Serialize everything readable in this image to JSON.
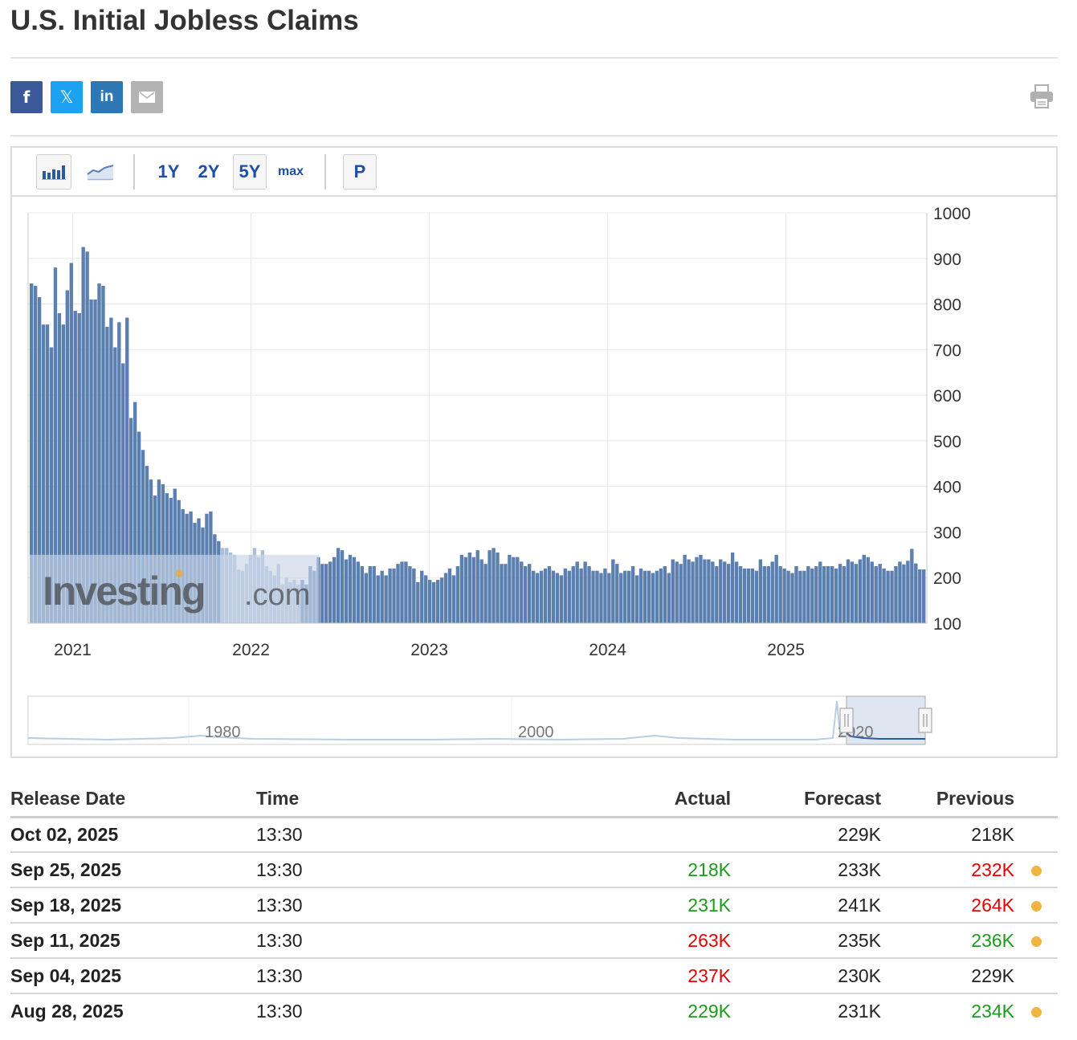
{
  "page": {
    "title": "U.S. Initial Jobless Claims"
  },
  "share": {
    "facebook": "f",
    "twitter": "𝕏",
    "linkedin": "in",
    "icons": [
      "facebook-icon",
      "twitter-icon",
      "linkedin-icon",
      "email-icon",
      "print-icon"
    ],
    "colors": {
      "facebook": "#3b5998",
      "twitter": "#1da1f2",
      "linkedin": "#2d77b5",
      "email": "#b3b3b3"
    }
  },
  "toolbar": {
    "chart_type_icons": [
      "bar-chart-icon",
      "area-chart-icon"
    ],
    "ranges": [
      "1Y",
      "2Y",
      "5Y",
      "max"
    ],
    "selected_range": "5Y",
    "p_label": "P"
  },
  "colors": {
    "bar": "#5b7fae",
    "bar_light": "#a9bdd6",
    "grid": "#e8e8e8",
    "positive": "#1a9c1a",
    "negative": "#e80000",
    "dot": "#f0b541"
  },
  "chart_data": {
    "type": "bar",
    "title": "U.S. Initial Jobless Claims",
    "x_range": [
      2020.75,
      2025.79
    ],
    "ylim": [
      100,
      1000
    ],
    "yticks": [
      100,
      200,
      300,
      400,
      500,
      600,
      700,
      800,
      900,
      1000
    ],
    "xticks": [
      "2021",
      "2022",
      "2023",
      "2024",
      "2025"
    ],
    "xtick_positions": [
      2021.0,
      2022.0,
      2023.0,
      2024.0,
      2025.0
    ],
    "watermark": "Investing.com",
    "values": [
      845,
      840,
      815,
      755,
      755,
      705,
      880,
      780,
      755,
      830,
      890,
      785,
      780,
      925,
      915,
      810,
      810,
      845,
      840,
      750,
      770,
      705,
      760,
      670,
      770,
      550,
      585,
      520,
      480,
      445,
      415,
      380,
      415,
      405,
      385,
      375,
      395,
      370,
      350,
      340,
      345,
      320,
      330,
      310,
      340,
      345,
      295,
      280,
      265,
      265,
      255,
      250,
      218,
      215,
      230,
      250,
      265,
      245,
      260,
      225,
      215,
      205,
      230,
      185,
      200,
      190,
      195,
      185,
      195,
      185,
      225,
      215,
      245,
      230,
      230,
      235,
      245,
      265,
      260,
      240,
      250,
      245,
      235,
      225,
      210,
      225,
      225,
      205,
      215,
      205,
      220,
      220,
      230,
      235,
      235,
      225,
      220,
      190,
      215,
      205,
      195,
      190,
      195,
      200,
      210,
      220,
      205,
      225,
      250,
      245,
      255,
      245,
      260,
      240,
      230,
      260,
      265,
      255,
      230,
      230,
      250,
      245,
      245,
      235,
      225,
      230,
      215,
      210,
      215,
      220,
      225,
      215,
      210,
      205,
      220,
      215,
      225,
      235,
      220,
      235,
      225,
      215,
      215,
      210,
      220,
      210,
      240,
      230,
      210,
      215,
      215,
      225,
      205,
      220,
      215,
      215,
      210,
      215,
      220,
      225,
      210,
      240,
      235,
      230,
      250,
      240,
      235,
      245,
      250,
      240,
      240,
      235,
      225,
      240,
      235,
      230,
      255,
      235,
      225,
      220,
      220,
      220,
      215,
      240,
      225,
      225,
      235,
      250,
      225,
      220,
      215,
      210,
      225,
      215,
      215,
      225,
      220,
      225,
      235,
      225,
      225,
      225,
      220,
      230,
      225,
      240,
      235,
      230,
      240,
      250,
      245,
      235,
      225,
      230,
      220,
      215,
      215,
      225,
      235,
      229,
      237,
      263,
      231,
      218,
      218
    ],
    "navigator": {
      "labels": [
        "1980",
        "2000",
        "2020"
      ]
    }
  },
  "table": {
    "headers": {
      "date": "Release Date",
      "time": "Time",
      "actual": "Actual",
      "forecast": "Forecast",
      "previous": "Previous"
    },
    "rows": [
      {
        "date": "Oct 02, 2025",
        "time": "13:30",
        "actual": "",
        "actual_class": "",
        "forecast": "229K",
        "previous": "218K",
        "previous_class": "",
        "dot": false
      },
      {
        "date": "Sep 25, 2025",
        "time": "13:30",
        "actual": "218K",
        "actual_class": "positive",
        "forecast": "233K",
        "previous": "232K",
        "previous_class": "negative",
        "dot": true
      },
      {
        "date": "Sep 18, 2025",
        "time": "13:30",
        "actual": "231K",
        "actual_class": "positive",
        "forecast": "241K",
        "previous": "264K",
        "previous_class": "negative",
        "dot": true
      },
      {
        "date": "Sep 11, 2025",
        "time": "13:30",
        "actual": "263K",
        "actual_class": "negative",
        "forecast": "235K",
        "previous": "236K",
        "previous_class": "positive",
        "dot": true
      },
      {
        "date": "Sep 04, 2025",
        "time": "13:30",
        "actual": "237K",
        "actual_class": "negative",
        "forecast": "230K",
        "previous": "229K",
        "previous_class": "",
        "dot": false
      },
      {
        "date": "Aug 28, 2025",
        "time": "13:30",
        "actual": "229K",
        "actual_class": "positive",
        "forecast": "231K",
        "previous": "234K",
        "previous_class": "positive",
        "dot": true
      }
    ]
  }
}
